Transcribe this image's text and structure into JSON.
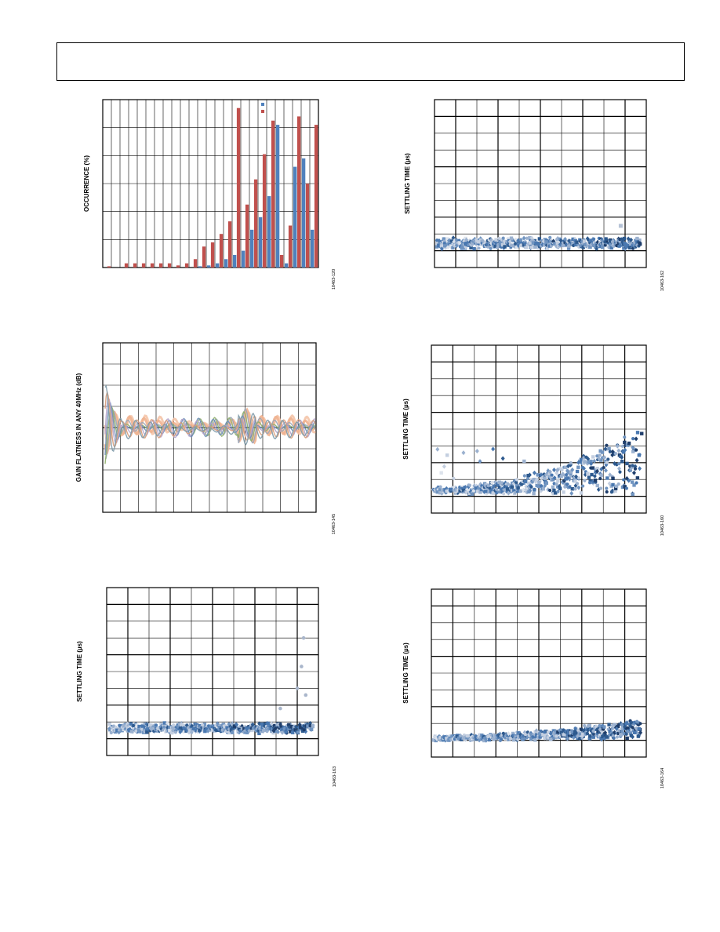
{
  "page": {
    "header": ""
  },
  "chart_data": [
    {
      "id": "c1",
      "type": "bar",
      "ylabel": "OCCURRENCE (%)",
      "fig_id": "10463-120",
      "grid": true,
      "legend_placement": "top-right",
      "series": [
        {
          "name": "",
          "color": "#4f81bd",
          "values": [
            0,
            0,
            0,
            0,
            0,
            0,
            0,
            0,
            0,
            0,
            0,
            0.3,
            0.5,
            1,
            2,
            3,
            4,
            9,
            12,
            17,
            34,
            1,
            24,
            26,
            9
          ]
        },
        {
          "name": "",
          "color": "#c0504d",
          "values": [
            0.3,
            0,
            1,
            1,
            1,
            1,
            1,
            1,
            0.5,
            1,
            2,
            5,
            6,
            8,
            11,
            38,
            15,
            21,
            27,
            35,
            3,
            10,
            36,
            20,
            34
          ]
        }
      ],
      "ylim": [
        0,
        40
      ]
    },
    {
      "id": "c2",
      "type": "scatter",
      "ylabel": "SETTLING TIME (µs)",
      "fig_id": "10463-162",
      "grid": true,
      "profile": "flat",
      "ylim": [
        0,
        10
      ]
    },
    {
      "id": "c3",
      "type": "line",
      "ylabel": "GAIN FLATNESS IN ANY 40MHz (dB)",
      "fig_id": "10463-145",
      "grid": true,
      "ylim": [
        -4,
        4
      ]
    },
    {
      "id": "c4",
      "type": "scatter",
      "ylabel": "SETTLING TIME (µs)",
      "fig_id": "10463-160",
      "grid": true,
      "profile": "rising",
      "ylim": [
        0,
        10
      ]
    },
    {
      "id": "c5",
      "type": "scatter",
      "ylabel": "SETTLING TIME (µs)",
      "fig_id": "10463-163",
      "grid": true,
      "profile": "flat-tail",
      "ylim": [
        0,
        10
      ]
    },
    {
      "id": "c6",
      "type": "scatter",
      "ylabel": "SETTLING TIME (µs)",
      "fig_id": "10463-164",
      "grid": true,
      "profile": "gentle-rise",
      "ylim": [
        0,
        10
      ]
    }
  ]
}
